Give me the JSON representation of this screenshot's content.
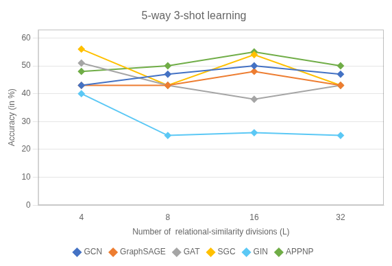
{
  "chart_data": {
    "type": "line",
    "title": "5-way 3-shot learning",
    "xlabel": "Number of  relational-similarity divisions (L)",
    "ylabel": "Accuracy (in %)",
    "categories": [
      "4",
      "8",
      "16",
      "32"
    ],
    "series": [
      {
        "name": "GCN",
        "color": "#4472C4",
        "marker": "diamond",
        "values": [
          43,
          47,
          50,
          47
        ]
      },
      {
        "name": "GraphSAGE",
        "color": "#ED7D31",
        "marker": "diamond",
        "values": [
          43,
          43,
          48,
          43
        ]
      },
      {
        "name": "GAT",
        "color": "#A5A5A5",
        "marker": "diamond",
        "values": [
          51,
          43,
          38,
          43
        ]
      },
      {
        "name": "SGC",
        "color": "#FFC000",
        "marker": "diamond",
        "values": [
          56,
          43,
          54,
          43
        ]
      },
      {
        "name": "GIN",
        "color": "#5BC8F5",
        "marker": "diamond",
        "values": [
          40,
          25,
          26,
          25
        ]
      },
      {
        "name": "APPNP",
        "color": "#70AD47",
        "marker": "diamond",
        "values": [
          48,
          50,
          55,
          50
        ]
      }
    ],
    "ylim": [
      0,
      63
    ],
    "yticks": [
      0,
      10,
      20,
      30,
      40,
      50,
      60
    ],
    "grid": "y",
    "legend": "bottom"
  }
}
